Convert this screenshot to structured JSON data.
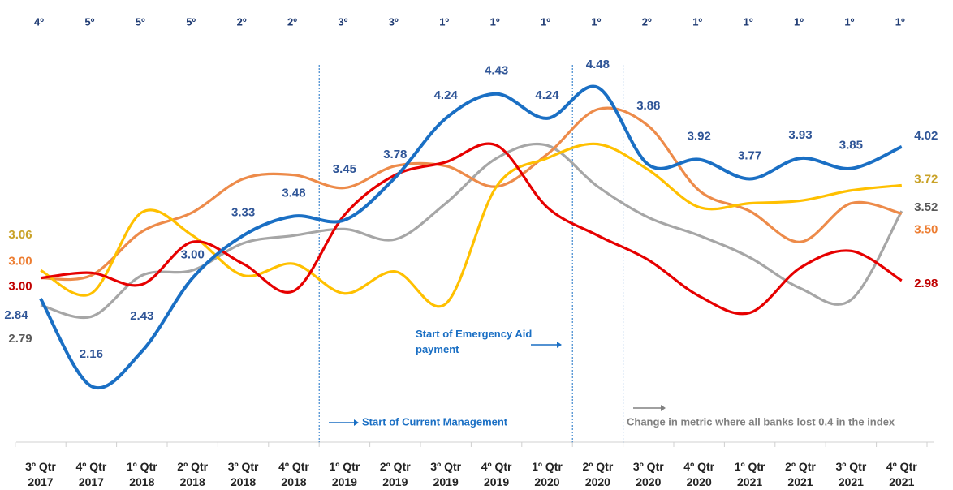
{
  "chart_data": {
    "type": "line",
    "rankings": [
      "4º",
      "5º",
      "5º",
      "5º",
      "2º",
      "2º",
      "3º",
      "3º",
      "1º",
      "1º",
      "1º",
      "1º",
      "2º",
      "1º",
      "1º",
      "1º",
      "1º",
      "1º"
    ],
    "categories": [
      "3º Qtr 2017",
      "4º Qtr 2017",
      "1º Qtr 2018",
      "2º Qtr 2018",
      "3º Qtr 2018",
      "4º Qtr 2018",
      "1º Qtr 2019",
      "2º Qtr 2019",
      "3º Qtr 2019",
      "4º Qtr 2019",
      "1º Qtr 2020",
      "2º Qtr 2020",
      "3º Qtr 2020",
      "4º Qtr 2020",
      "1º Qtr 2021",
      "2º Qtr 2021",
      "3º Qtr 2021",
      "4º Qtr 2021"
    ],
    "ylim": [
      1.7,
      4.8
    ],
    "series": [
      {
        "color": "#1a6fc4",
        "label_color": "#2f5597",
        "values": [
          2.84,
          2.16,
          2.43,
          3,
          3.33,
          3.48,
          3.45,
          3.78,
          4.24,
          4.43,
          4.24,
          4.48,
          3.88,
          3.92,
          3.77,
          3.93,
          3.85,
          4.02
        ],
        "value_labels": [
          "2.84",
          "2.16",
          "2.43",
          "3.00",
          "3.33",
          "3.48",
          "3.45",
          "3.78",
          "4.24",
          "4.43",
          "4.24",
          "4.48",
          "3.88",
          "3.92",
          "3.77",
          "3.93",
          "3.85",
          "4.02"
        ]
      },
      {
        "color": "#ed8b4a",
        "label_color": "#ed7d31",
        "values": [
          3,
          3.02,
          3.36,
          3.51,
          3.77,
          3.8,
          3.7,
          3.87,
          3.87,
          3.71,
          3.96,
          4.31,
          4.18,
          3.68,
          3.52,
          3.28,
          3.58,
          3.5
        ],
        "value_labels": [
          "3.00",
          null,
          null,
          null,
          null,
          null,
          null,
          null,
          null,
          null,
          null,
          null,
          null,
          null,
          null,
          null,
          null,
          "3.50"
        ]
      },
      {
        "color": "#ffc000",
        "label_color": "#c9a227",
        "values": [
          3.06,
          2.88,
          3.51,
          3.33,
          3.02,
          3.11,
          2.88,
          3.05,
          2.8,
          3.71,
          3.93,
          4.04,
          3.84,
          3.55,
          3.58,
          3.6,
          3.68,
          3.72
        ],
        "value_labels": [
          "3.06",
          null,
          null,
          null,
          null,
          null,
          null,
          null,
          null,
          null,
          null,
          null,
          null,
          null,
          null,
          null,
          null,
          "3.72"
        ]
      },
      {
        "color": "#e60000",
        "label_color": "#c00000",
        "values": [
          3,
          3.04,
          2.95,
          3.28,
          3.11,
          2.9,
          3.49,
          3.8,
          3.9,
          4.03,
          3.55,
          3.33,
          3.14,
          2.86,
          2.73,
          3.08,
          3.21,
          2.98
        ],
        "value_labels": [
          "3.00",
          null,
          null,
          null,
          null,
          null,
          null,
          null,
          null,
          null,
          null,
          null,
          null,
          null,
          null,
          null,
          null,
          "2.98"
        ]
      },
      {
        "color": "#a6a6a6",
        "label_color": "#595959",
        "values": [
          2.79,
          2.7,
          3.02,
          3.06,
          3.27,
          3.33,
          3.38,
          3.3,
          3.58,
          3.93,
          4.03,
          3.71,
          3.47,
          3.33,
          3.16,
          2.92,
          2.83,
          3.52
        ],
        "value_labels": [
          "2.79",
          null,
          null,
          null,
          null,
          null,
          null,
          null,
          null,
          null,
          null,
          null,
          null,
          null,
          null,
          null,
          null,
          "3.52"
        ]
      }
    ],
    "annotations": [
      "Start of Emergency Aid payment",
      "Start of Current Management",
      "Change in metric where all banks lost 0.4 in the index"
    ]
  }
}
